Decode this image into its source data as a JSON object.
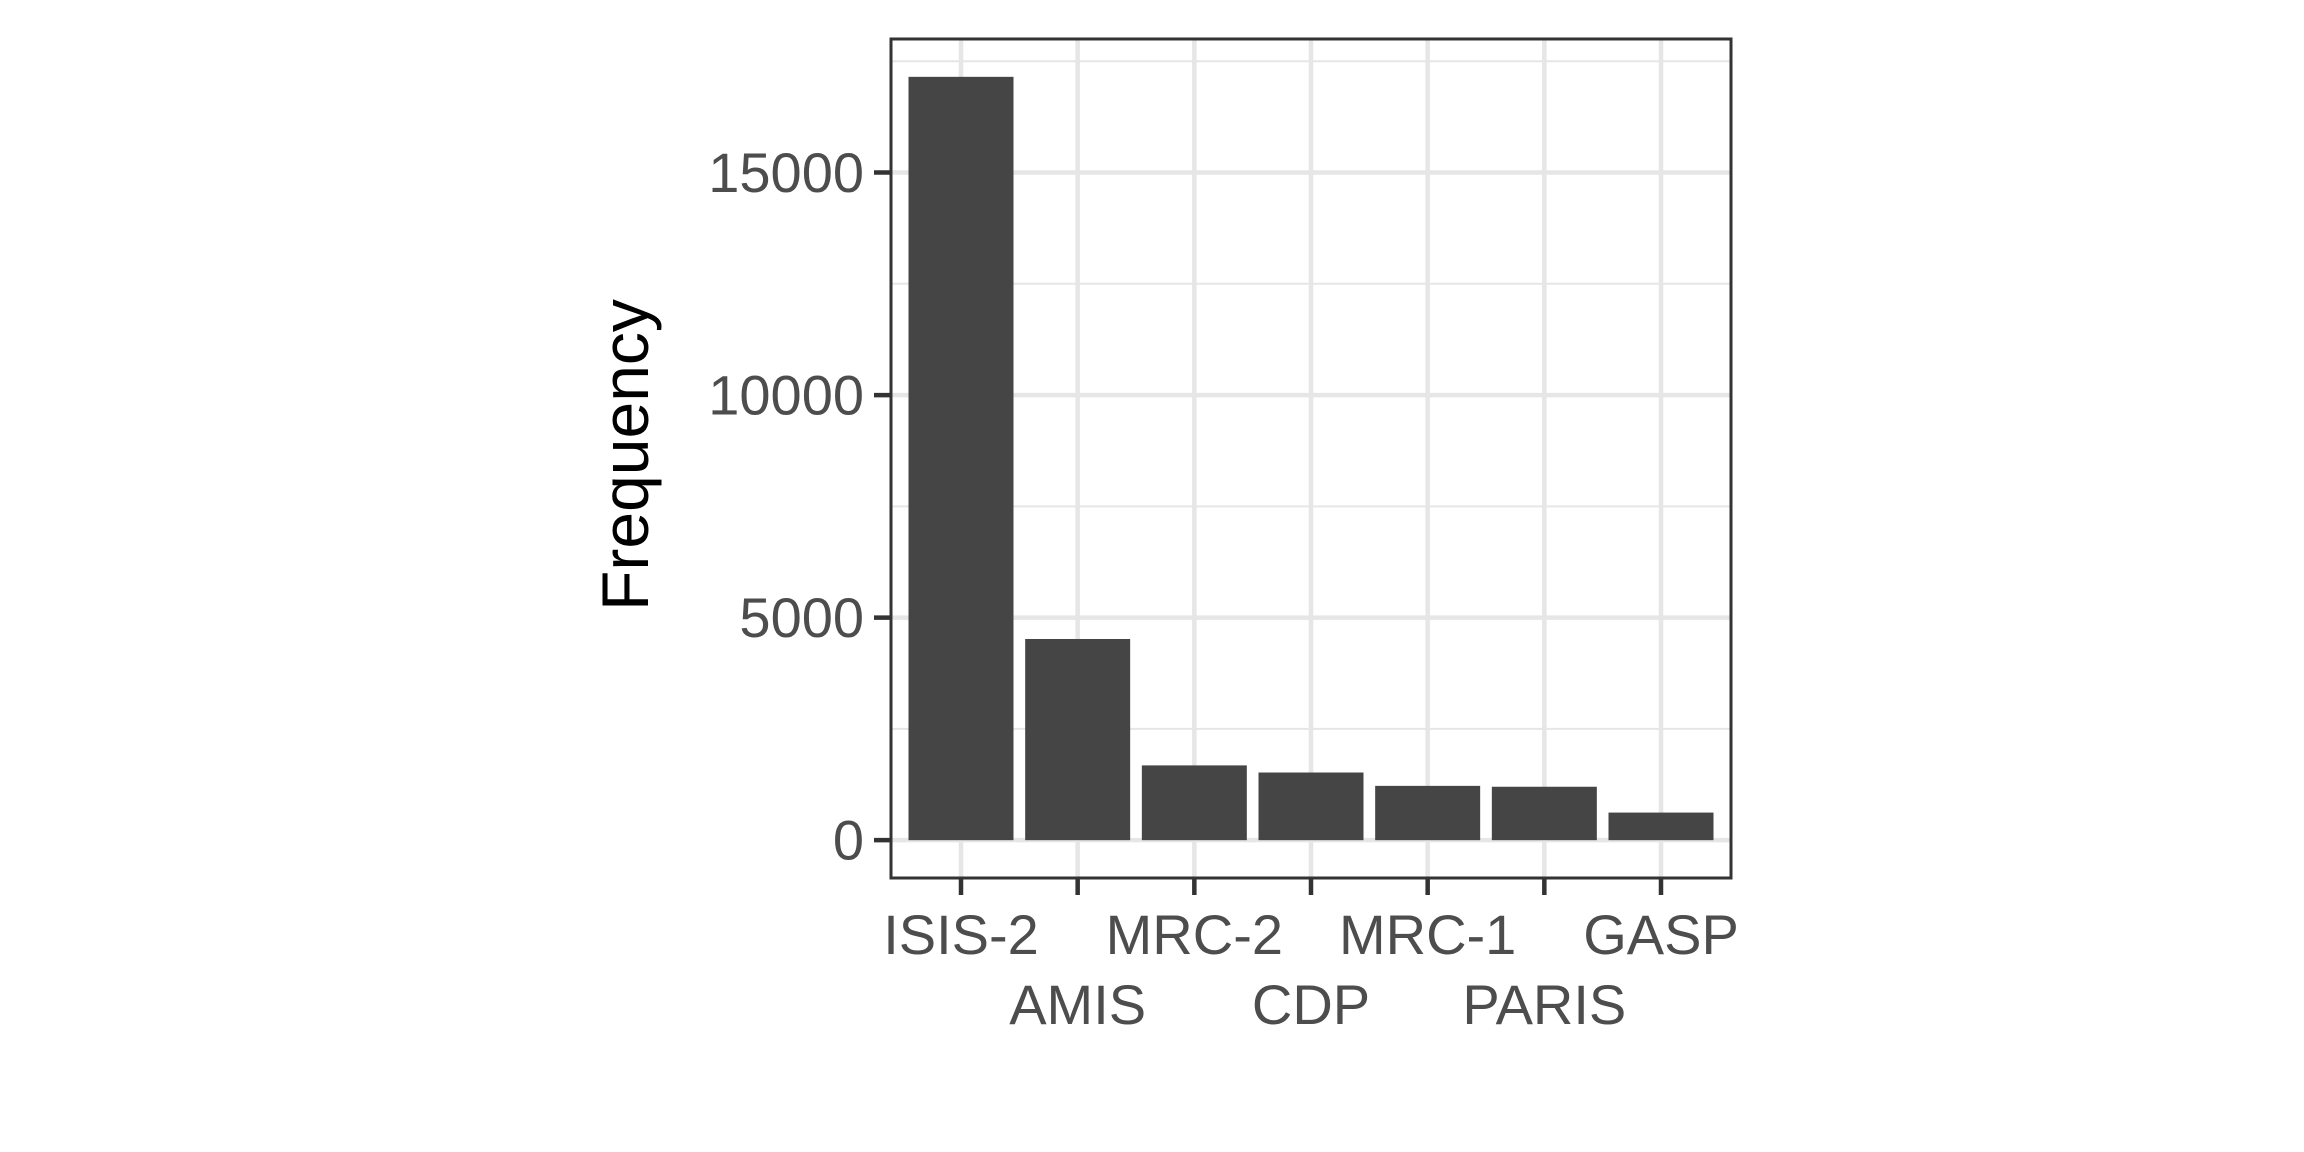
{
  "chart_data": {
    "type": "bar",
    "title": "",
    "xlabel": "",
    "ylabel": "Frequency",
    "categories": [
      "ISIS-2",
      "AMIS",
      "MRC-2",
      "CDP",
      "MRC-1",
      "PARIS",
      "GASP"
    ],
    "values": [
      17150,
      4520,
      1680,
      1520,
      1220,
      1200,
      620
    ],
    "ylim": [
      -850,
      18000
    ],
    "y_ticks": [
      0,
      5000,
      10000,
      15000
    ],
    "y_tick_labels": [
      "0",
      "5000",
      "10000",
      "15000"
    ],
    "x_label_rows": [
      0,
      1,
      0,
      1,
      0,
      1,
      0
    ],
    "grid": true,
    "colors": {
      "bar": "#454545",
      "grid": "#e6e6e6",
      "panel_border": "#333333",
      "tick_mark": "#333333",
      "tick_label": "#4d4d4d",
      "axis_title": "#000000"
    }
  }
}
